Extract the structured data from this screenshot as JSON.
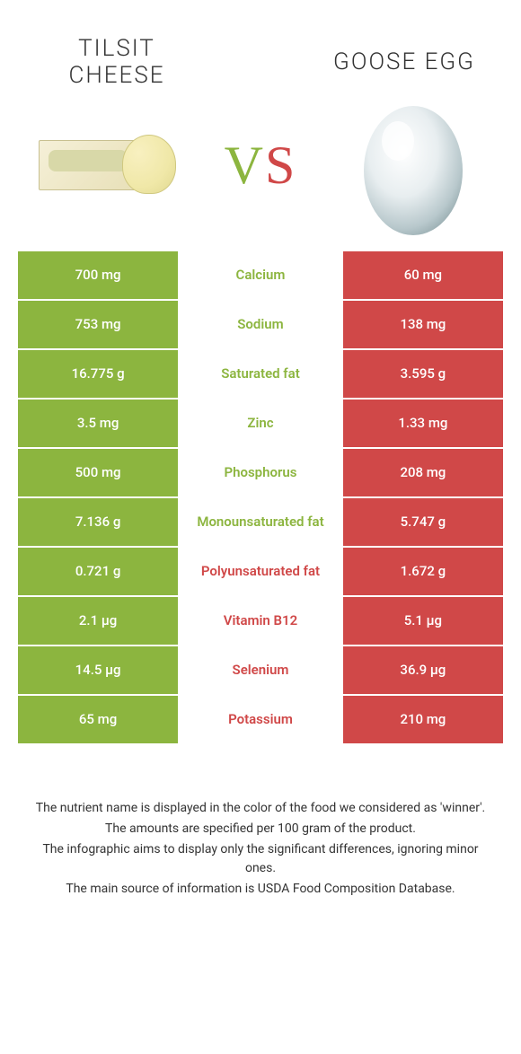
{
  "left_food_title": "TILSIT\nCHEESE",
  "right_food_title": "GOOSE EGG",
  "vs_v": "V",
  "vs_s": "S",
  "colors": {
    "green": "#8cb53f",
    "red": "#d04848",
    "text": "#333333",
    "bg": "#ffffff"
  },
  "rows": [
    {
      "left": "700 mg",
      "nutrient": "Calcium",
      "right": "60 mg",
      "winner": "left"
    },
    {
      "left": "753 mg",
      "nutrient": "Sodium",
      "right": "138 mg",
      "winner": "left"
    },
    {
      "left": "16.775 g",
      "nutrient": "Saturated fat",
      "right": "3.595 g",
      "winner": "left"
    },
    {
      "left": "3.5 mg",
      "nutrient": "Zinc",
      "right": "1.33 mg",
      "winner": "left"
    },
    {
      "left": "500 mg",
      "nutrient": "Phosphorus",
      "right": "208 mg",
      "winner": "left"
    },
    {
      "left": "7.136 g",
      "nutrient": "Monounsaturated fat",
      "right": "5.747 g",
      "winner": "left"
    },
    {
      "left": "0.721 g",
      "nutrient": "Polyunsaturated fat",
      "right": "1.672 g",
      "winner": "right"
    },
    {
      "left": "2.1 µg",
      "nutrient": "Vitamin B12",
      "right": "5.1 µg",
      "winner": "right"
    },
    {
      "left": "14.5 µg",
      "nutrient": "Selenium",
      "right": "36.9 µg",
      "winner": "right"
    },
    {
      "left": "65 mg",
      "nutrient": "Potassium",
      "right": "210 mg",
      "winner": "right"
    }
  ],
  "footnotes": [
    "The nutrient name is displayed in the color of the food we considered as 'winner'.",
    "The amounts are specified per 100 gram of the product.",
    "The infographic aims to display only the significant differences, ignoring minor ones.",
    "The main source of information is USDA Food Composition Database."
  ]
}
